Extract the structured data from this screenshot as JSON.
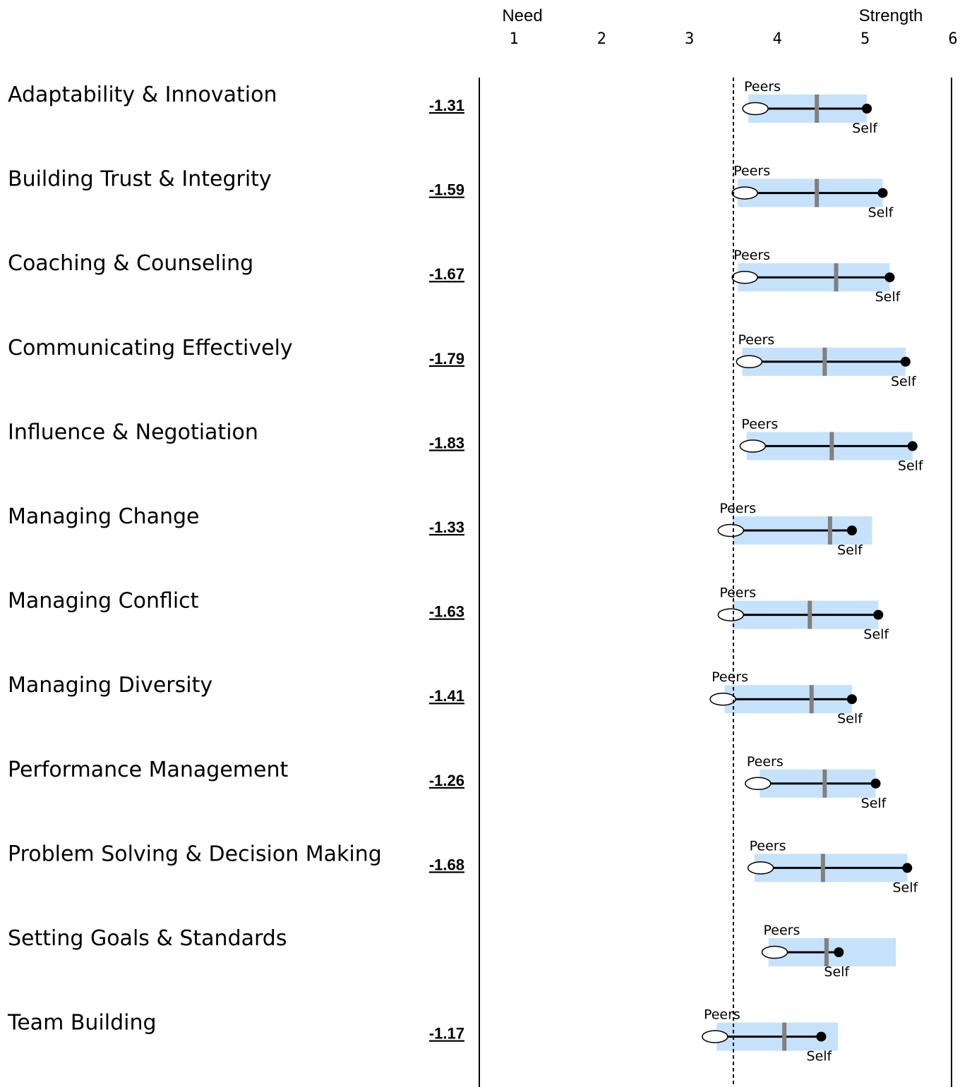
{
  "chart_data": {
    "type": "range-dot",
    "axis": {
      "left_caption": "Need",
      "right_caption": "Strength",
      "ticks": [
        1,
        2,
        3,
        4,
        5,
        6
      ],
      "range": [
        1,
        6
      ]
    },
    "reference_line": 3.5,
    "marker_labels": {
      "peers": "Peers",
      "self": "Self"
    },
    "rows": [
      {
        "label": "Adaptability & Innovation",
        "gap": "-1.31",
        "range": [
          3.67,
          5.02
        ],
        "median": 4.45,
        "peers": 3.75,
        "self": 5.02
      },
      {
        "label": "Building Trust & Integrity",
        "gap": "-1.59",
        "range": [
          3.55,
          5.2
        ],
        "median": 4.45,
        "peers": 3.63,
        "self": 5.2
      },
      {
        "label": "Coaching & Counseling",
        "gap": "-1.67",
        "range": [
          3.55,
          5.28
        ],
        "median": 4.67,
        "peers": 3.63,
        "self": 5.28
      },
      {
        "label": "Communicating Effectively",
        "gap": "-1.79",
        "range": [
          3.6,
          5.46
        ],
        "median": 4.54,
        "peers": 3.68,
        "self": 5.46
      },
      {
        "label": "Influence & Negotiation",
        "gap": "-1.83",
        "range": [
          3.65,
          5.54
        ],
        "median": 4.62,
        "peers": 3.72,
        "self": 5.54
      },
      {
        "label": "Managing Change",
        "gap": "-1.33",
        "range": [
          3.49,
          5.08
        ],
        "median": 4.6,
        "peers": 3.47,
        "self": 4.85
      },
      {
        "label": "Managing Conflict",
        "gap": "-1.63",
        "range": [
          3.49,
          5.15
        ],
        "median": 4.37,
        "peers": 3.47,
        "self": 5.15
      },
      {
        "label": "Managing Diversity",
        "gap": "-1.41",
        "range": [
          3.4,
          4.85
        ],
        "median": 4.39,
        "peers": 3.38,
        "self": 4.85
      },
      {
        "label": "Performance Management",
        "gap": "-1.26",
        "range": [
          3.8,
          5.12
        ],
        "median": 4.54,
        "peers": 3.78,
        "self": 5.12
      },
      {
        "label": "Problem Solving & Decision Making",
        "gap": "-1.68",
        "range": [
          3.74,
          5.48
        ],
        "median": 4.52,
        "peers": 3.81,
        "self": 5.48
      },
      {
        "label": "Setting Goals & Standards",
        "gap": "",
        "range": [
          3.9,
          5.35
        ],
        "median": 4.56,
        "peers": 3.97,
        "self": 4.7
      },
      {
        "label": "Team Building",
        "gap": "-1.17",
        "range": [
          3.31,
          4.69
        ],
        "median": 4.08,
        "peers": 3.29,
        "self": 4.5
      }
    ]
  }
}
